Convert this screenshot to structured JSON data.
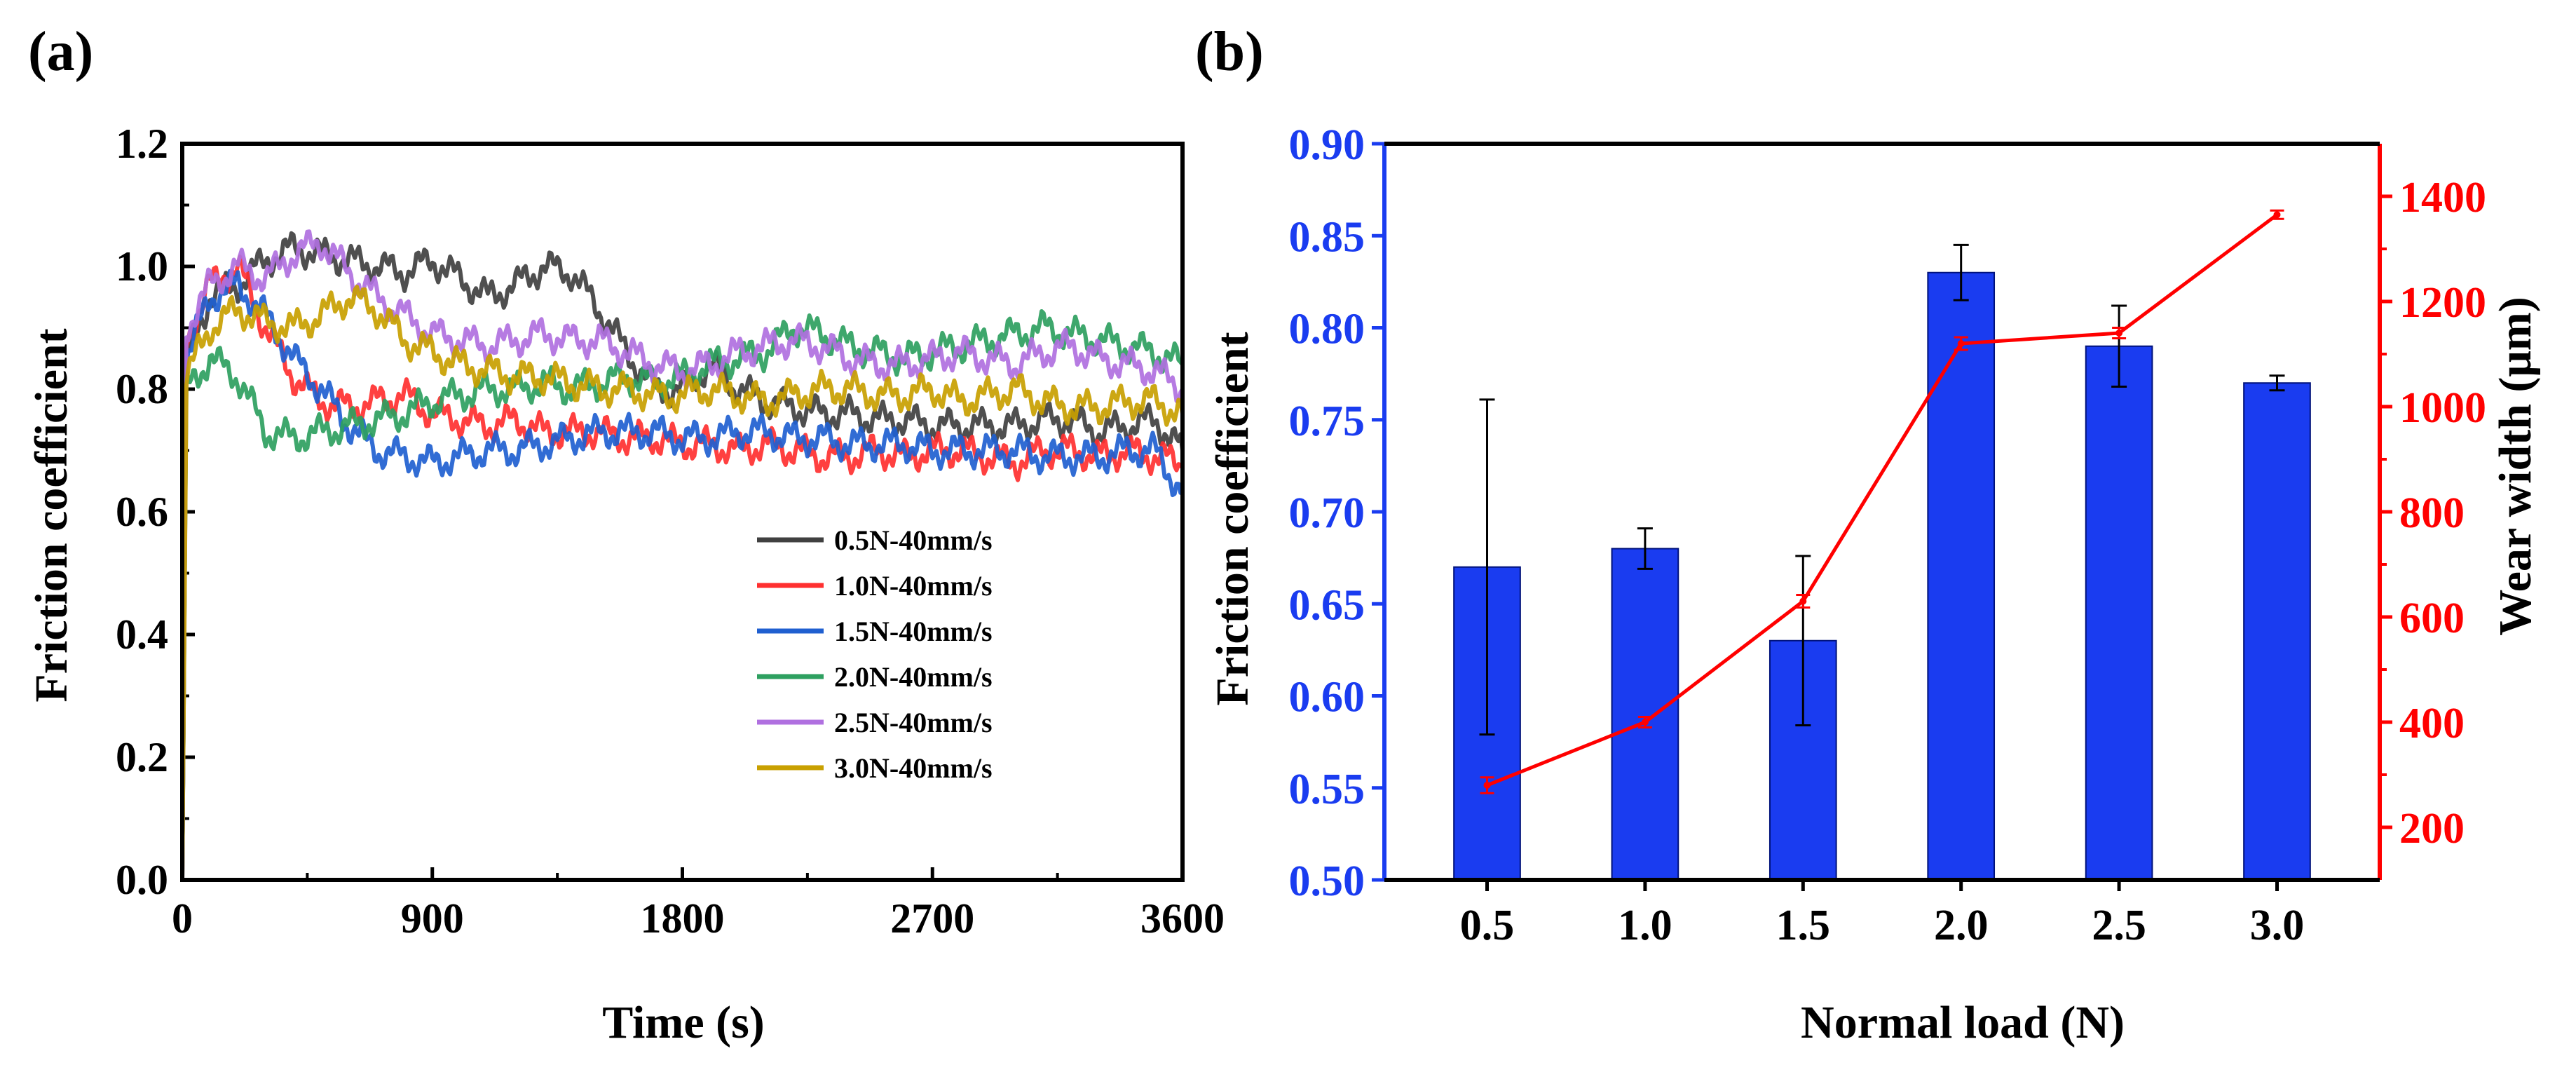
{
  "chart_data": [
    {
      "panel_label": "(a)",
      "type": "line",
      "title": "",
      "xlabel": "Time (s)",
      "ylabel": "Friction coefficient",
      "xlim": [
        0,
        3600
      ],
      "ylim": [
        0,
        1.2
      ],
      "xticks": [
        0,
        900,
        1800,
        2700,
        3600
      ],
      "xtick_labels": [
        "0",
        "900",
        "1800",
        "2700",
        "3600"
      ],
      "yticks": [
        0.0,
        0.2,
        0.4,
        0.6,
        0.8,
        1.0,
        1.2
      ],
      "ytick_labels": [
        "0.0",
        "0.2",
        "0.4",
        "0.6",
        "0.8",
        "1.0",
        "1.2"
      ],
      "grid": false,
      "legend_position": "lower-right",
      "series": [
        {
          "name": "0.5N-40mm/s",
          "color": "#404040",
          "x": [
            0,
            15,
            100,
            200,
            300,
            400,
            500,
            600,
            700,
            800,
            900,
            1000,
            1100,
            1200,
            1300,
            1400,
            1500,
            1600,
            1700,
            1800,
            1900,
            2000,
            2100,
            2200,
            2300,
            2400,
            2500,
            2600,
            2700,
            2800,
            2900,
            3000,
            3100,
            3200,
            3300,
            3400,
            3500,
            3600
          ],
          "y": [
            0.0,
            0.85,
            0.95,
            0.97,
            1.01,
            1.03,
            1.02,
            1.01,
            1.0,
            0.99,
            1.01,
            0.98,
            0.95,
            0.97,
            1.0,
            0.99,
            0.93,
            0.86,
            0.8,
            0.8,
            0.84,
            0.8,
            0.78,
            0.77,
            0.76,
            0.76,
            0.75,
            0.75,
            0.74,
            0.74,
            0.74,
            0.74,
            0.75,
            0.75,
            0.73,
            0.74,
            0.75,
            0.7
          ]
        },
        {
          "name": "1.0N-40mm/s",
          "color": "#ff3030",
          "x": [
            0,
            15,
            100,
            200,
            300,
            400,
            500,
            600,
            700,
            800,
            900,
            1000,
            1100,
            1200,
            1300,
            1400,
            1500,
            1600,
            1700,
            1800,
            1900,
            2000,
            2100,
            2200,
            2300,
            2400,
            2500,
            2600,
            2700,
            2800,
            2900,
            3000,
            3100,
            3200,
            3300,
            3400,
            3500,
            3600
          ],
          "y": [
            0.0,
            0.88,
            0.97,
            1.0,
            0.9,
            0.82,
            0.78,
            0.77,
            0.78,
            0.79,
            0.76,
            0.75,
            0.74,
            0.75,
            0.73,
            0.73,
            0.73,
            0.72,
            0.72,
            0.71,
            0.71,
            0.7,
            0.71,
            0.7,
            0.69,
            0.69,
            0.7,
            0.69,
            0.7,
            0.7,
            0.69,
            0.68,
            0.7,
            0.7,
            0.69,
            0.7,
            0.69,
            0.68
          ]
        },
        {
          "name": "1.5N-40mm/s",
          "color": "#1f5fd0",
          "x": [
            0,
            15,
            100,
            200,
            300,
            400,
            500,
            600,
            700,
            800,
            900,
            1000,
            1100,
            1200,
            1300,
            1400,
            1500,
            1600,
            1700,
            1800,
            1900,
            2000,
            2100,
            2200,
            2300,
            2400,
            2500,
            2600,
            2700,
            2800,
            2900,
            3000,
            3100,
            3200,
            3300,
            3400,
            3500,
            3600
          ],
          "y": [
            0.0,
            0.85,
            0.95,
            0.97,
            0.92,
            0.85,
            0.8,
            0.74,
            0.7,
            0.69,
            0.68,
            0.69,
            0.7,
            0.7,
            0.71,
            0.72,
            0.73,
            0.73,
            0.73,
            0.72,
            0.72,
            0.73,
            0.73,
            0.72,
            0.72,
            0.71,
            0.71,
            0.71,
            0.7,
            0.7,
            0.7,
            0.7,
            0.69,
            0.69,
            0.69,
            0.7,
            0.7,
            0.63
          ]
        },
        {
          "name": "2.0N-40mm/s",
          "color": "#2ea060",
          "x": [
            0,
            15,
            100,
            200,
            300,
            400,
            500,
            600,
            700,
            800,
            900,
            1000,
            1100,
            1200,
            1300,
            1400,
            1500,
            1600,
            1700,
            1800,
            1900,
            2000,
            2100,
            2200,
            2300,
            2400,
            2500,
            2600,
            2700,
            2800,
            2900,
            3000,
            3100,
            3200,
            3300,
            3400,
            3500,
            3600
          ],
          "y": [
            0.0,
            0.8,
            0.85,
            0.82,
            0.73,
            0.72,
            0.73,
            0.74,
            0.75,
            0.76,
            0.78,
            0.79,
            0.8,
            0.8,
            0.81,
            0.8,
            0.81,
            0.82,
            0.81,
            0.82,
            0.84,
            0.85,
            0.86,
            0.9,
            0.89,
            0.87,
            0.86,
            0.85,
            0.86,
            0.87,
            0.88,
            0.89,
            0.9,
            0.89,
            0.88,
            0.87,
            0.86,
            0.84
          ]
        },
        {
          "name": "2.5N-40mm/s",
          "color": "#b070e0",
          "x": [
            0,
            15,
            100,
            200,
            300,
            400,
            500,
            600,
            700,
            800,
            900,
            1000,
            1100,
            1200,
            1300,
            1400,
            1500,
            1600,
            1700,
            1800,
            1900,
            2000,
            2100,
            2200,
            2300,
            2400,
            2500,
            2600,
            2700,
            2800,
            2900,
            3000,
            3100,
            3200,
            3300,
            3400,
            3500,
            3600
          ],
          "y": [
            0.0,
            0.9,
            0.97,
            1.0,
            0.98,
            1.02,
            1.04,
            0.99,
            0.95,
            0.92,
            0.89,
            0.88,
            0.87,
            0.88,
            0.89,
            0.88,
            0.88,
            0.86,
            0.84,
            0.83,
            0.84,
            0.86,
            0.87,
            0.88,
            0.87,
            0.85,
            0.84,
            0.84,
            0.85,
            0.86,
            0.85,
            0.84,
            0.86,
            0.87,
            0.85,
            0.84,
            0.83,
            0.8
          ]
        },
        {
          "name": "3.0N-40mm/s",
          "color": "#c8a000",
          "x": [
            0,
            15,
            100,
            200,
            300,
            400,
            500,
            600,
            700,
            800,
            900,
            1000,
            1100,
            1200,
            1300,
            1400,
            1500,
            1600,
            1700,
            1800,
            1900,
            2000,
            2100,
            2200,
            2300,
            2400,
            2500,
            2600,
            2700,
            2800,
            2900,
            3000,
            3100,
            3200,
            3300,
            3400,
            3500,
            3600
          ],
          "y": [
            0.0,
            0.82,
            0.9,
            0.93,
            0.91,
            0.9,
            0.92,
            0.95,
            0.93,
            0.88,
            0.86,
            0.84,
            0.83,
            0.82,
            0.82,
            0.81,
            0.8,
            0.8,
            0.79,
            0.79,
            0.8,
            0.79,
            0.78,
            0.79,
            0.8,
            0.8,
            0.79,
            0.79,
            0.8,
            0.78,
            0.79,
            0.8,
            0.78,
            0.77,
            0.77,
            0.78,
            0.78,
            0.76
          ]
        }
      ]
    },
    {
      "panel_label": "(b)",
      "type": "bar",
      "title": "",
      "xlabel": "Normal load (N)",
      "ylabel": "Friction coefficient",
      "y2label": "Wear width (μm)",
      "categories": [
        "0.5",
        "1.0",
        "1.5",
        "2.0",
        "2.5",
        "3.0"
      ],
      "ylim": [
        0.5,
        0.9
      ],
      "yticks": [
        0.5,
        0.55,
        0.6,
        0.65,
        0.7,
        0.75,
        0.8,
        0.85,
        0.9
      ],
      "ytick_labels": [
        "0.50",
        "0.55",
        "0.60",
        "0.65",
        "0.70",
        "0.75",
        "0.80",
        "0.85",
        "0.90"
      ],
      "y2lim": [
        100,
        1500
      ],
      "y2ticks": [
        200,
        400,
        600,
        800,
        1000,
        1200,
        1400
      ],
      "y2tick_labels": [
        "200",
        "400",
        "600",
        "800",
        "1000",
        "1200",
        "1400"
      ],
      "left_axis_color": "#1a3cf0",
      "right_axis_color": "#ff0000",
      "grid": false,
      "series": [
        {
          "name": "Friction coefficient",
          "type": "bar",
          "axis": "left",
          "color": "#1a3cf0",
          "values": [
            0.67,
            0.68,
            0.63,
            0.83,
            0.79,
            0.77
          ],
          "errors": [
            0.091,
            0.011,
            0.046,
            0.015,
            0.022,
            0.004
          ]
        },
        {
          "name": "Wear width",
          "type": "line",
          "axis": "right",
          "color": "#ff0000",
          "values": [
            280,
            400,
            630,
            1120,
            1140,
            1365
          ],
          "errors": [
            15,
            10,
            12,
            12,
            10,
            8
          ]
        }
      ]
    }
  ]
}
